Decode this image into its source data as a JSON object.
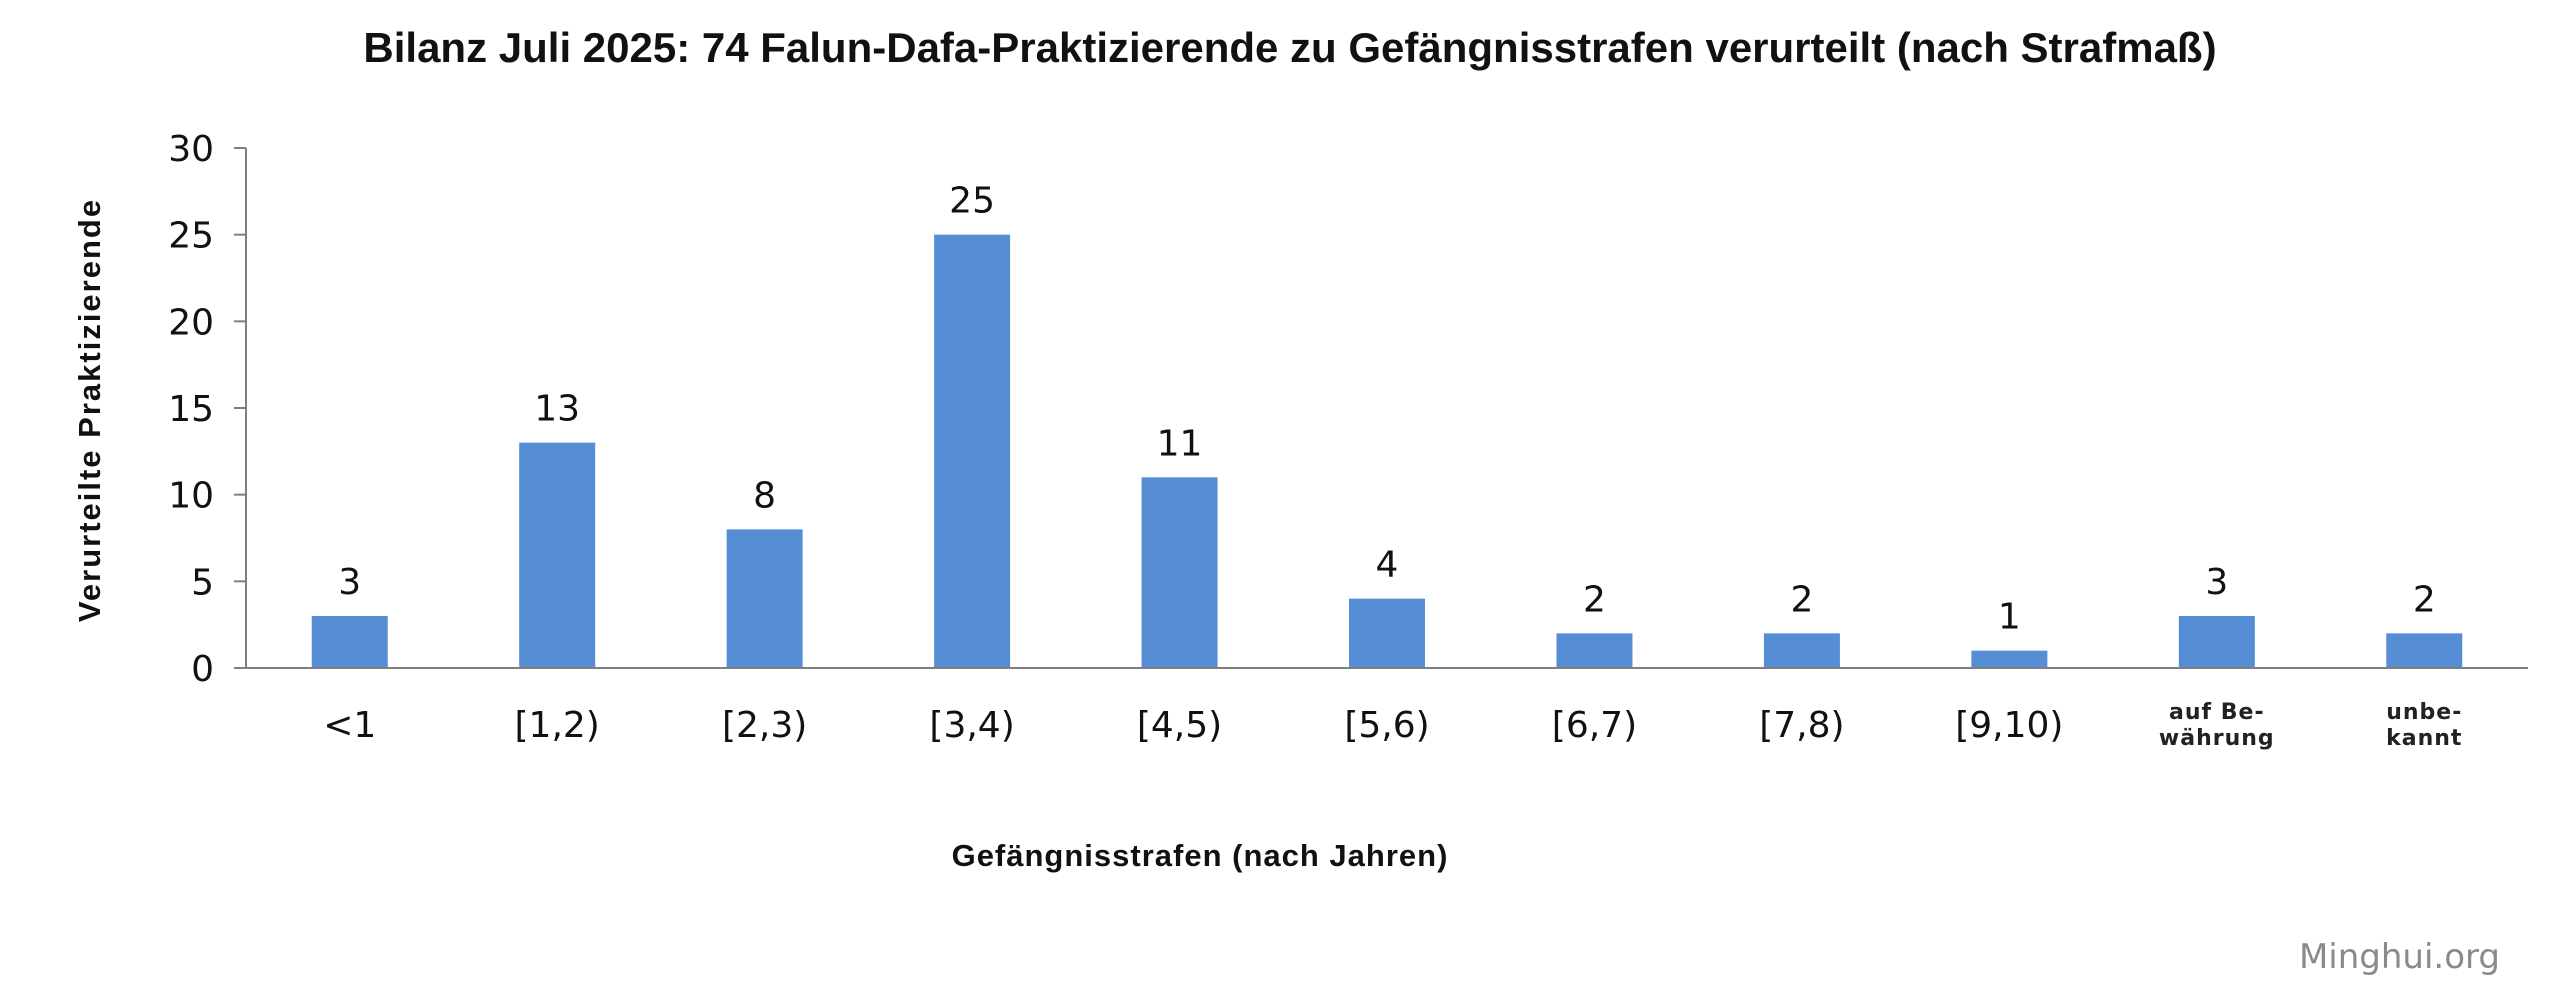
{
  "chart_data": {
    "type": "bar",
    "title": "Bilanz Juli 2025: 74 Falun-Dafa-Praktizierende zu Gefängnisstrafen verurteilt  (nach Strafmaß)",
    "xlabel": "Gefängnisstrafen (nach Jahren)",
    "ylabel": "Verurteilte Praktizierende",
    "categories": [
      "<1",
      "[1,2)",
      "[2,3)",
      "[3,4)",
      "[4,5)",
      "[5,6)",
      "[6,7)",
      "[7,8)",
      "[9,10)",
      "auf Be- währung",
      "unbe- kannt"
    ],
    "category_lines": [
      [
        "<1"
      ],
      [
        "[1,2)"
      ],
      [
        "[2,3)"
      ],
      [
        "[3,4)"
      ],
      [
        "[4,5)"
      ],
      [
        "[5,6)"
      ],
      [
        "[6,7)"
      ],
      [
        "[7,8)"
      ],
      [
        "[9,10)"
      ],
      [
        "auf Be-",
        "währung"
      ],
      [
        "unbe-",
        "kannt"
      ]
    ],
    "values": [
      3,
      13,
      8,
      25,
      11,
      4,
      2,
      2,
      1,
      3,
      2
    ],
    "ylim": [
      0,
      30
    ],
    "yticks": [
      0,
      5,
      10,
      15,
      20,
      25,
      30
    ],
    "grid": false,
    "legend": "none",
    "bar_color": "#558ed5"
  },
  "watermark": "Minghui.org"
}
